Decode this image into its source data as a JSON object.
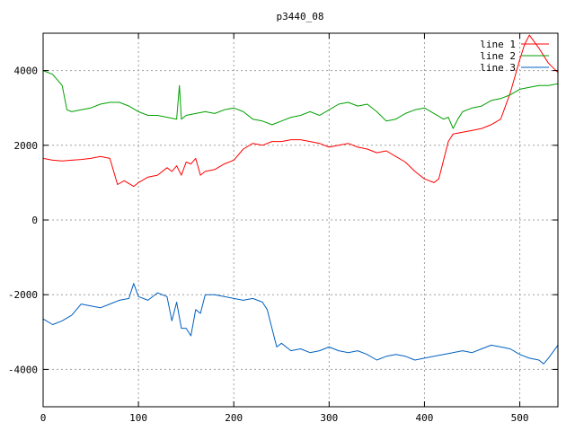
{
  "chart_data": {
    "type": "line",
    "title": "p3440_08",
    "xlabel": "",
    "ylabel": "",
    "xlim": [
      0,
      540
    ],
    "ylim": [
      -5000,
      5000
    ],
    "x_ticks": [
      0,
      100,
      200,
      300,
      400,
      500
    ],
    "y_ticks": [
      -4000,
      -2000,
      0,
      2000,
      4000
    ],
    "x_tick_labels": [
      "0",
      "100",
      "200",
      "300",
      "400",
      "500"
    ],
    "y_tick_labels": [
      "-4000",
      "-2000",
      "0",
      "2000",
      "4000"
    ],
    "grid": true,
    "legend_position": "top-right",
    "series": [
      {
        "name": "line 1",
        "color": "#ff0000",
        "x": [
          0,
          10,
          20,
          30,
          40,
          50,
          60,
          70,
          78,
          85,
          95,
          100,
          110,
          120,
          130,
          135,
          140,
          145,
          150,
          155,
          160,
          165,
          170,
          180,
          190,
          200,
          210,
          220,
          230,
          240,
          250,
          260,
          270,
          280,
          290,
          300,
          310,
          320,
          330,
          340,
          350,
          360,
          370,
          380,
          390,
          400,
          410,
          415,
          420,
          425,
          430,
          440,
          450,
          460,
          470,
          480,
          490,
          500,
          505,
          510,
          520,
          530,
          540
        ],
        "y": [
          1650,
          1600,
          1580,
          1600,
          1620,
          1650,
          1700,
          1650,
          950,
          1050,
          900,
          1000,
          1150,
          1200,
          1400,
          1300,
          1450,
          1200,
          1550,
          1500,
          1650,
          1200,
          1300,
          1350,
          1500,
          1600,
          1900,
          2050,
          2000,
          2100,
          2100,
          2150,
          2150,
          2100,
          2050,
          1950,
          2000,
          2050,
          1950,
          1900,
          1800,
          1850,
          1700,
          1550,
          1300,
          1100,
          1000,
          1100,
          1600,
          2100,
          2300,
          2350,
          2400,
          2450,
          2550,
          2700,
          3400,
          4300,
          4700,
          4950,
          4600,
          4200,
          3950
        ]
      },
      {
        "name": "line 2",
        "color": "#00a000",
        "x": [
          0,
          10,
          20,
          25,
          30,
          40,
          50,
          60,
          70,
          80,
          90,
          100,
          110,
          120,
          130,
          140,
          143,
          145,
          150,
          160,
          170,
          180,
          190,
          200,
          210,
          220,
          230,
          240,
          250,
          260,
          270,
          280,
          290,
          300,
          310,
          320,
          330,
          340,
          350,
          360,
          370,
          380,
          390,
          400,
          410,
          420,
          425,
          430,
          435,
          440,
          450,
          460,
          470,
          480,
          490,
          500,
          510,
          520,
          530,
          540
        ],
        "y": [
          4000,
          3900,
          3600,
          2950,
          2900,
          2950,
          3000,
          3100,
          3150,
          3150,
          3050,
          2900,
          2800,
          2800,
          2750,
          2700,
          3600,
          2700,
          2800,
          2850,
          2900,
          2850,
          2950,
          3000,
          2900,
          2700,
          2650,
          2550,
          2650,
          2750,
          2800,
          2900,
          2800,
          2950,
          3100,
          3150,
          3050,
          3100,
          2900,
          2650,
          2700,
          2850,
          2950,
          3000,
          2850,
          2700,
          2750,
          2450,
          2700,
          2900,
          3000,
          3050,
          3200,
          3250,
          3350,
          3500,
          3550,
          3600,
          3600,
          3650
        ]
      },
      {
        "name": "line 3",
        "color": "#0060c0",
        "x": [
          0,
          10,
          20,
          30,
          35,
          40,
          50,
          60,
          70,
          80,
          90,
          95,
          100,
          110,
          120,
          130,
          135,
          140,
          145,
          150,
          155,
          160,
          165,
          170,
          180,
          190,
          200,
          210,
          220,
          230,
          235,
          240,
          245,
          250,
          260,
          270,
          280,
          290,
          300,
          310,
          320,
          330,
          340,
          350,
          360,
          370,
          380,
          390,
          400,
          410,
          420,
          430,
          440,
          450,
          460,
          470,
          480,
          490,
          500,
          510,
          520,
          525,
          530,
          540
        ],
        "y": [
          -2650,
          -2800,
          -2700,
          -2550,
          -2400,
          -2250,
          -2300,
          -2350,
          -2250,
          -2150,
          -2100,
          -1700,
          -2050,
          -2150,
          -1950,
          -2050,
          -2700,
          -2200,
          -2900,
          -2900,
          -3100,
          -2400,
          -2500,
          -2000,
          -2000,
          -2050,
          -2100,
          -2150,
          -2100,
          -2200,
          -2400,
          -2900,
          -3400,
          -3300,
          -3500,
          -3450,
          -3550,
          -3500,
          -3400,
          -3500,
          -3550,
          -3500,
          -3600,
          -3750,
          -3650,
          -3600,
          -3650,
          -3750,
          -3700,
          -3650,
          -3600,
          -3550,
          -3500,
          -3550,
          -3450,
          -3350,
          -3400,
          -3450,
          -3600,
          -3700,
          -3750,
          -3850,
          -3700,
          -3350
        ]
      }
    ]
  }
}
